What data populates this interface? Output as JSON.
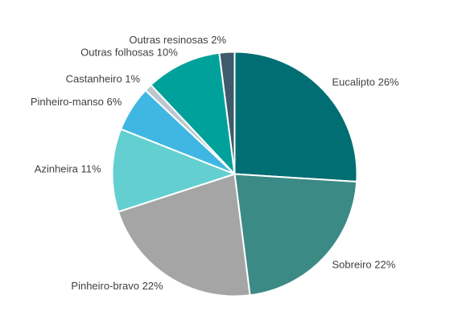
{
  "chart_data": {
    "type": "pie",
    "title": "",
    "start_angle_deg": 0,
    "direction": "clockwise",
    "slices": [
      {
        "name": "Eucalipto",
        "value": 26,
        "label": "Eucalipto  26%",
        "color": "#006e72"
      },
      {
        "name": "Sobreiro",
        "value": 22,
        "label": "Sobreiro 22%",
        "color": "#3c8a85"
      },
      {
        "name": "Pinheiro-bravo",
        "value": 22,
        "label": "Pinheiro-bravo 22%",
        "color": "#a5a5a5"
      },
      {
        "name": "Azinheira",
        "value": 11,
        "label": "Azinheira 11%",
        "color": "#63cfd0"
      },
      {
        "name": "Pinheiro-manso",
        "value": 6,
        "label": "Pinheiro-manso 6%",
        "color": "#3fb7e2"
      },
      {
        "name": "Castanheiro",
        "value": 1,
        "label": "Castanheiro 1%",
        "color": "#bcc6ce"
      },
      {
        "name": "Outras folhosas",
        "value": 10,
        "label": "Outras folhosas 10%",
        "color": "#00a19a"
      },
      {
        "name": "Outras resinosas",
        "value": 2,
        "label": "Outras resinosas 2%",
        "color": "#3e5b6b"
      }
    ],
    "legend": "none",
    "data_labels": "outside"
  }
}
